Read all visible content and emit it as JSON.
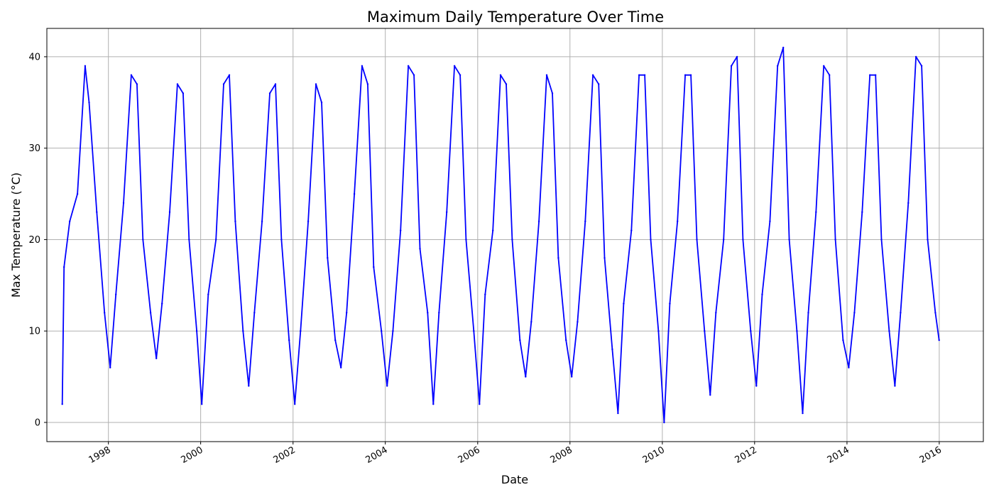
{
  "chart_data": {
    "type": "line",
    "title": "Maximum Daily Temperature Over Time",
    "xlabel": "Date",
    "ylabel": "Max Temperature (°C)",
    "grid": true,
    "xlim": [
      "1996-09-01",
      "2016-12-15"
    ],
    "ylim": [
      -2.1,
      43.1
    ],
    "y_ticks": [
      0,
      10,
      20,
      30,
      40
    ],
    "x_ticks": [
      "1998",
      "2000",
      "2002",
      "2004",
      "2006",
      "2008",
      "2010",
      "2012",
      "2014",
      "2016"
    ],
    "series": [
      {
        "color": "#0000ff",
        "x": [
          "1997-01-01",
          "1997-01-15",
          "1997-03-01",
          "1997-05-01",
          "1997-07-01",
          "1997-08-01",
          "1997-10-01",
          "1997-12-01",
          "1998-01-15",
          "1998-03-01",
          "1998-05-01",
          "1998-07-01",
          "1998-08-15",
          "1998-10-01",
          "1998-12-01",
          "1999-01-15",
          "1999-03-01",
          "1999-05-01",
          "1999-07-01",
          "1999-08-15",
          "1999-10-01",
          "1999-12-01",
          "2000-01-10",
          "2000-03-01",
          "2000-05-01",
          "2000-07-01",
          "2000-08-15",
          "2000-10-01",
          "2000-12-01",
          "2001-01-15",
          "2001-03-01",
          "2001-05-01",
          "2001-07-01",
          "2001-08-15",
          "2001-10-01",
          "2001-12-01",
          "2002-01-15",
          "2002-03-01",
          "2002-05-01",
          "2002-07-01",
          "2002-08-15",
          "2002-10-01",
          "2002-12-01",
          "2003-01-15",
          "2003-03-01",
          "2003-05-01",
          "2003-07-01",
          "2003-08-15",
          "2003-10-01",
          "2003-12-01",
          "2004-01-15",
          "2004-03-01",
          "2004-05-01",
          "2004-07-01",
          "2004-08-15",
          "2004-10-01",
          "2004-12-01",
          "2005-01-15",
          "2005-03-01",
          "2005-05-01",
          "2005-07-01",
          "2005-08-15",
          "2005-10-01",
          "2005-12-01",
          "2006-01-15",
          "2006-03-01",
          "2006-05-01",
          "2006-07-01",
          "2006-08-15",
          "2006-10-01",
          "2006-12-01",
          "2007-01-15",
          "2007-03-01",
          "2007-05-01",
          "2007-07-01",
          "2007-08-15",
          "2007-10-01",
          "2007-12-01",
          "2008-01-15",
          "2008-03-01",
          "2008-05-01",
          "2008-07-01",
          "2008-08-15",
          "2008-10-01",
          "2008-12-01",
          "2009-01-15",
          "2009-03-01",
          "2009-05-01",
          "2009-07-01",
          "2009-08-15",
          "2009-10-01",
          "2009-12-01",
          "2010-01-15",
          "2010-03-01",
          "2010-05-01",
          "2010-07-01",
          "2010-08-15",
          "2010-10-01",
          "2010-12-01",
          "2011-01-15",
          "2011-03-01",
          "2011-05-01",
          "2011-07-01",
          "2011-08-15",
          "2011-10-01",
          "2011-12-01",
          "2012-01-15",
          "2012-03-01",
          "2012-05-01",
          "2012-07-01",
          "2012-08-15",
          "2012-10-01",
          "2012-12-01",
          "2013-01-15",
          "2013-03-01",
          "2013-05-01",
          "2013-07-01",
          "2013-08-15",
          "2013-10-01",
          "2013-12-01",
          "2014-01-15",
          "2014-03-01",
          "2014-05-01",
          "2014-07-01",
          "2014-08-15",
          "2014-10-01",
          "2014-12-01",
          "2015-01-15",
          "2015-03-01",
          "2015-05-01",
          "2015-07-01",
          "2015-08-15",
          "2015-10-01",
          "2015-12-01",
          "2015-12-31"
        ],
        "y": [
          2,
          17,
          22,
          25,
          39,
          35,
          23,
          12,
          6,
          14,
          24,
          38,
          37,
          20,
          12,
          7,
          13,
          23,
          37,
          36,
          20,
          10,
          2,
          14,
          20,
          37,
          38,
          22,
          10,
          4,
          12,
          22,
          36,
          37,
          20,
          9,
          2,
          10,
          22,
          37,
          35,
          18,
          9,
          6,
          12,
          25,
          39,
          37,
          17,
          10,
          4,
          10,
          21,
          39,
          38,
          19,
          12,
          2,
          12,
          23,
          39,
          38,
          20,
          10,
          2,
          14,
          21,
          38,
          37,
          20,
          9,
          5,
          11,
          22,
          38,
          36,
          18,
          9,
          5,
          11,
          22,
          38,
          37,
          18,
          8,
          1,
          13,
          21,
          38,
          38,
          20,
          10,
          0,
          13,
          22,
          38,
          38,
          20,
          10,
          3,
          12,
          20,
          39,
          40,
          20,
          10,
          4,
          14,
          22,
          39,
          41,
          20,
          10,
          1,
          12,
          23,
          39,
          38,
          20,
          9,
          6,
          12,
          23,
          38,
          38,
          20,
          10,
          4,
          12,
          24,
          40,
          39,
          20,
          12,
          9
        ]
      }
    ]
  }
}
